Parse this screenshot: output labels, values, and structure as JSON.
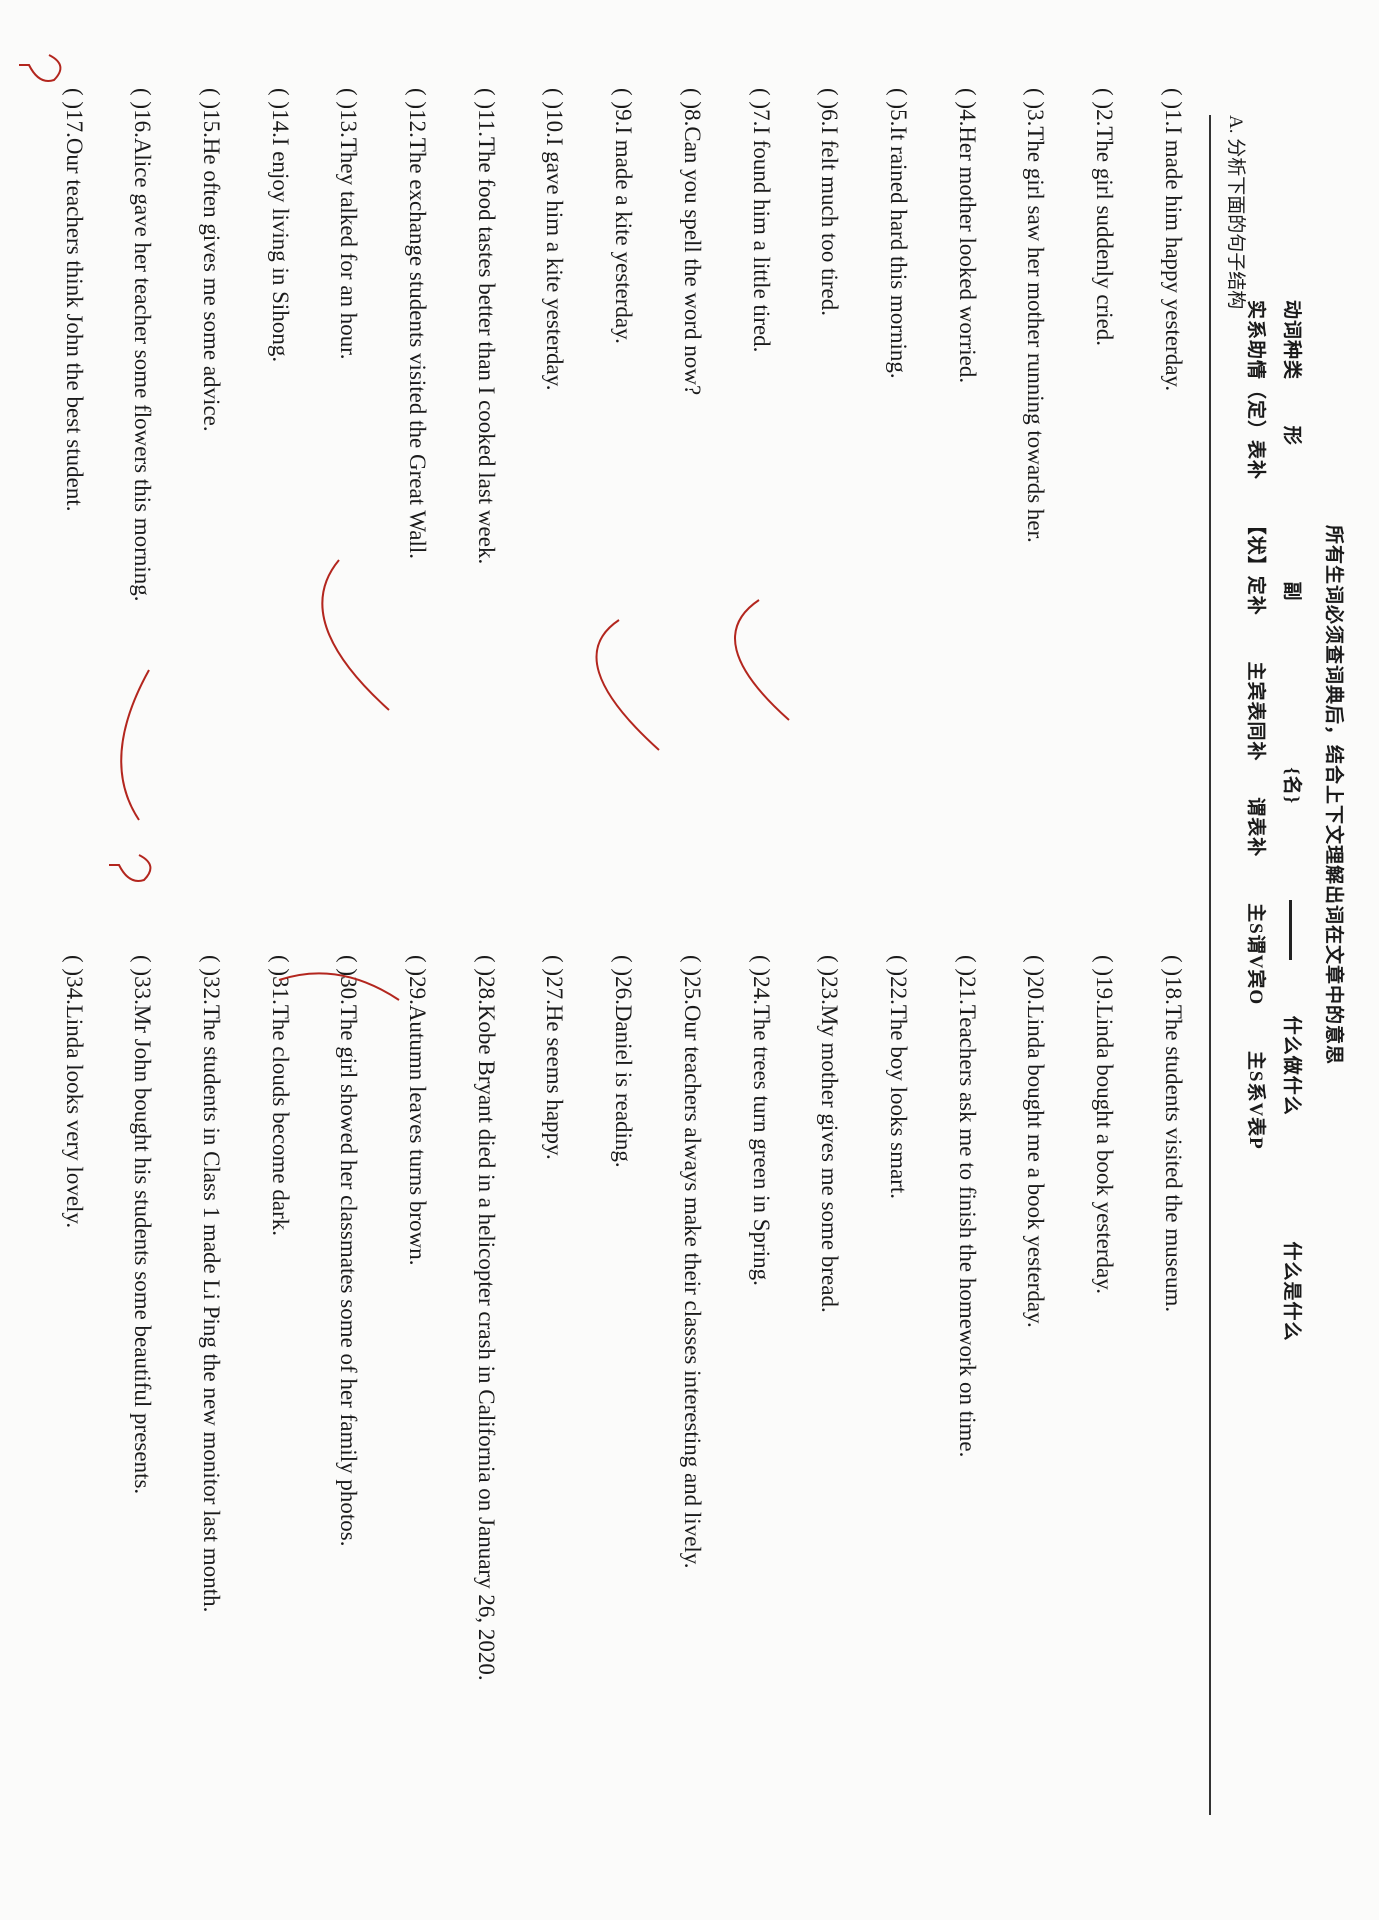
{
  "header": {
    "instruction": "所有生词必须查词典后，结合上下文理解出词在文章中的意思",
    "row1": [
      "动词种类",
      "形",
      "副",
      "{名}",
      "",
      "什么做什么",
      "什么是什么"
    ],
    "row2": [
      "实系助情（定）表补",
      "【状】定补",
      "主宾表同补",
      "谓表补",
      "主S谓V宾O",
      "主S系V表P"
    ]
  },
  "section_title": "A. 分析下面的句子结构",
  "left_items": [
    "( )1.I made him happy yesterday.",
    "( )2.The girl suddenly cried.",
    "( )3.The girl saw her mother running towards her.",
    "( )4.Her mother looked worried.",
    "( )5.It rained hard this morning.",
    "( )6.I felt much too tired.",
    "( )7.I found him a little tired.",
    "( )8.Can you spell the word now?",
    "( )9.I made a kite yesterday.",
    "( )10.I gave him a kite yesterday.",
    "( )11.The food tastes better than I cooked last week.",
    "( )12.The exchange students visited the Great Wall.",
    "( )13.They talked for an hour.",
    "( )14.I enjoy living in Sihong.",
    "( )15.He often gives me some advice.",
    "( )16.Alice gave her teacher some flowers this morning.",
    "( )17.Our teachers think John the best student."
  ],
  "right_items": [
    "( )18.The students visited the museum.",
    "( )19.Linda bought a book yesterday.",
    "( )20.Linda bought me a book yesterday.",
    "( )21.Teachers ask me to finish the homework on time.",
    "( )22.The boy looks smart.",
    "( )23.My mother gives me some bread.",
    "( )24.The trees turn green in Spring.",
    "( )25.Our teachers always make their classes interesting and lively.",
    "( )26.Daniel is reading.",
    "( )27.He seems happy.",
    "( )28.Kobe Bryant died in a helicopter crash in California on January 26, 2020.",
    "( )29.Autumn leaves turns brown.",
    "( )30.The girl showed her classmates some of her family photos.",
    "( )31.The clouds become dark.",
    "( )32.The students in Class 1 made Li Ping the new monitor last month.",
    "( )33.Mr John bought his students some beautiful presents.",
    "( )34.Linda looks very lovely."
  ],
  "colors": {
    "ink": "#1a1a1a",
    "annotation": "#b3261e"
  }
}
